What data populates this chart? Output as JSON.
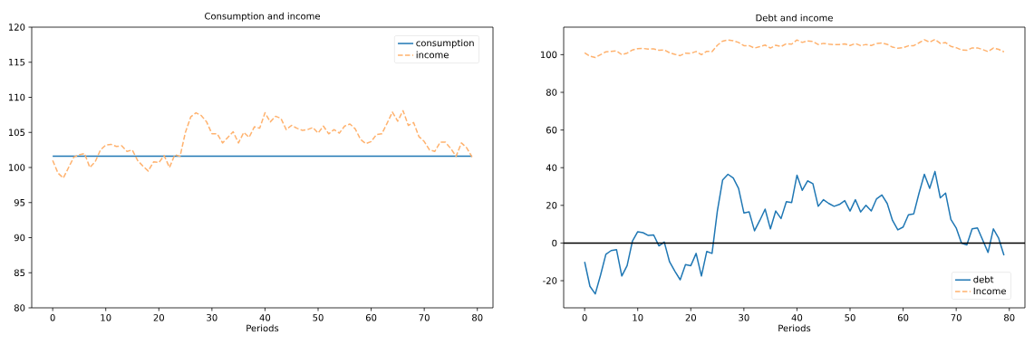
{
  "chart_data": [
    {
      "type": "line",
      "title": "Consumption and income",
      "xlabel": "Periods",
      "x": [
        0,
        1,
        2,
        3,
        4,
        5,
        6,
        7,
        8,
        9,
        10,
        11,
        12,
        13,
        14,
        15,
        16,
        17,
        18,
        19,
        20,
        21,
        22,
        23,
        24,
        25,
        26,
        27,
        28,
        29,
        30,
        31,
        32,
        33,
        34,
        35,
        36,
        37,
        38,
        39,
        40,
        41,
        42,
        43,
        44,
        45,
        46,
        47,
        48,
        49,
        50,
        51,
        52,
        53,
        54,
        55,
        56,
        57,
        58,
        59,
        60,
        61,
        62,
        63,
        64,
        65,
        66,
        67,
        68,
        69,
        70,
        71,
        72,
        73,
        74,
        75,
        76,
        77,
        78,
        79
      ],
      "series": [
        {
          "name": "consumption",
          "color": "#1f77b4",
          "line_style": "solid",
          "x": [
            0,
            79
          ],
          "values": [
            101.6,
            101.6
          ]
        },
        {
          "name": "income",
          "color": "#ffb26e",
          "line_style": "dashed",
          "values": [
            101,
            99.2,
            98.5,
            100,
            101.5,
            101.8,
            102,
            100,
            100.8,
            102.5,
            103.2,
            103.3,
            103,
            103.1,
            102.3,
            102.5,
            101,
            100.2,
            99.5,
            100.8,
            100.7,
            101.7,
            100,
            101.8,
            101.6,
            105,
            107.2,
            107.8,
            107.4,
            106.5,
            104.8,
            104.8,
            103.5,
            104.3,
            105.1,
            103.5,
            105,
            104.3,
            105.8,
            105.6,
            107.8,
            106.5,
            107.3,
            107,
            105.4,
            106,
            105.6,
            105.3,
            105.4,
            105.7,
            104.9,
            105.9,
            104.8,
            105.4,
            104.9,
            105.9,
            106.2,
            105.5,
            104,
            103.4,
            103.7,
            104.7,
            104.8,
            106.3,
            107.9,
            106.6,
            108.1,
            106,
            106.4,
            104.4,
            103.7,
            102.5,
            102.3,
            103.6,
            103.6,
            102.7,
            101.6,
            103.5,
            102.8,
            101.5
          ]
        }
      ],
      "xlim": [
        -3.95,
        82.95
      ],
      "xticks": [
        0,
        10,
        20,
        30,
        40,
        50,
        60,
        70,
        80
      ],
      "ylim": [
        80,
        120
      ],
      "yticks": [
        80,
        85,
        90,
        95,
        100,
        105,
        110,
        115,
        120
      ],
      "grid": false,
      "legend": "top right"
    },
    {
      "type": "line",
      "title": "Debt and income",
      "xlabel": "Periods",
      "x": [
        0,
        1,
        2,
        3,
        4,
        5,
        6,
        7,
        8,
        9,
        10,
        11,
        12,
        13,
        14,
        15,
        16,
        17,
        18,
        19,
        20,
        21,
        22,
        23,
        24,
        25,
        26,
        27,
        28,
        29,
        30,
        31,
        32,
        33,
        34,
        35,
        36,
        37,
        38,
        39,
        40,
        41,
        42,
        43,
        44,
        45,
        46,
        47,
        48,
        49,
        50,
        51,
        52,
        53,
        54,
        55,
        56,
        57,
        58,
        59,
        60,
        61,
        62,
        63,
        64,
        65,
        66,
        67,
        68,
        69,
        70,
        71,
        72,
        73,
        74,
        75,
        76,
        77,
        78,
        79
      ],
      "series": [
        {
          "name": "debt",
          "color": "#1f77b4",
          "line_style": "solid",
          "values": [
            -10,
            -23,
            -27,
            -17,
            -6,
            -4,
            -3.5,
            -17.5,
            -12,
            1,
            6,
            5.5,
            4,
            4.3,
            -1.5,
            0.5,
            -10,
            -15,
            -19.5,
            -11.5,
            -12,
            -5.5,
            -17.5,
            -4.5,
            -5.5,
            17,
            33.5,
            36.5,
            34.5,
            29,
            16,
            16.5,
            6.5,
            12,
            18,
            7.5,
            17,
            13,
            22,
            21.5,
            36,
            28,
            33,
            31.5,
            19.5,
            23,
            21,
            19.5,
            20.5,
            22.5,
            17,
            23,
            16.5,
            20,
            17,
            23.5,
            25.5,
            21,
            12,
            7,
            8.5,
            15,
            15.5,
            26.5,
            36.5,
            29,
            38,
            24,
            26.5,
            12.5,
            8,
            0,
            -1,
            7.5,
            8,
            1.5,
            -5,
            7.5,
            2.5,
            -6.5
          ]
        },
        {
          "name": "Income",
          "color": "#ffb26e",
          "line_style": "dashed",
          "values": [
            101,
            99.2,
            98.5,
            100,
            101.5,
            101.8,
            102,
            100,
            100.8,
            102.5,
            103.2,
            103.3,
            103,
            103.1,
            102.3,
            102.5,
            101,
            100.2,
            99.5,
            100.8,
            100.7,
            101.7,
            100,
            101.8,
            101.6,
            105,
            107.2,
            107.8,
            107.4,
            106.5,
            104.8,
            104.8,
            103.5,
            104.3,
            105.1,
            103.5,
            105,
            104.3,
            105.8,
            105.6,
            107.8,
            106.5,
            107.3,
            107,
            105.4,
            106,
            105.6,
            105.3,
            105.4,
            105.7,
            104.9,
            105.9,
            104.8,
            105.4,
            104.9,
            105.9,
            106.2,
            105.5,
            104,
            103.4,
            103.7,
            104.7,
            104.8,
            106.3,
            107.9,
            106.6,
            108.1,
            106,
            106.4,
            104.4,
            103.7,
            102.5,
            102.3,
            103.6,
            103.6,
            102.7,
            101.6,
            103.5,
            102.8,
            101.5
          ]
        }
      ],
      "xlim": [
        -3.95,
        82.95
      ],
      "xticks": [
        0,
        10,
        20,
        30,
        40,
        50,
        60,
        70,
        80
      ],
      "ylim": [
        -34.4,
        114.6
      ],
      "yticks": [
        -20,
        0,
        20,
        40,
        60,
        80,
        100
      ],
      "ref_lines": [
        {
          "axis": "y",
          "value": 0,
          "color": "#000000"
        }
      ],
      "grid": false,
      "legend": "bottom right"
    }
  ]
}
